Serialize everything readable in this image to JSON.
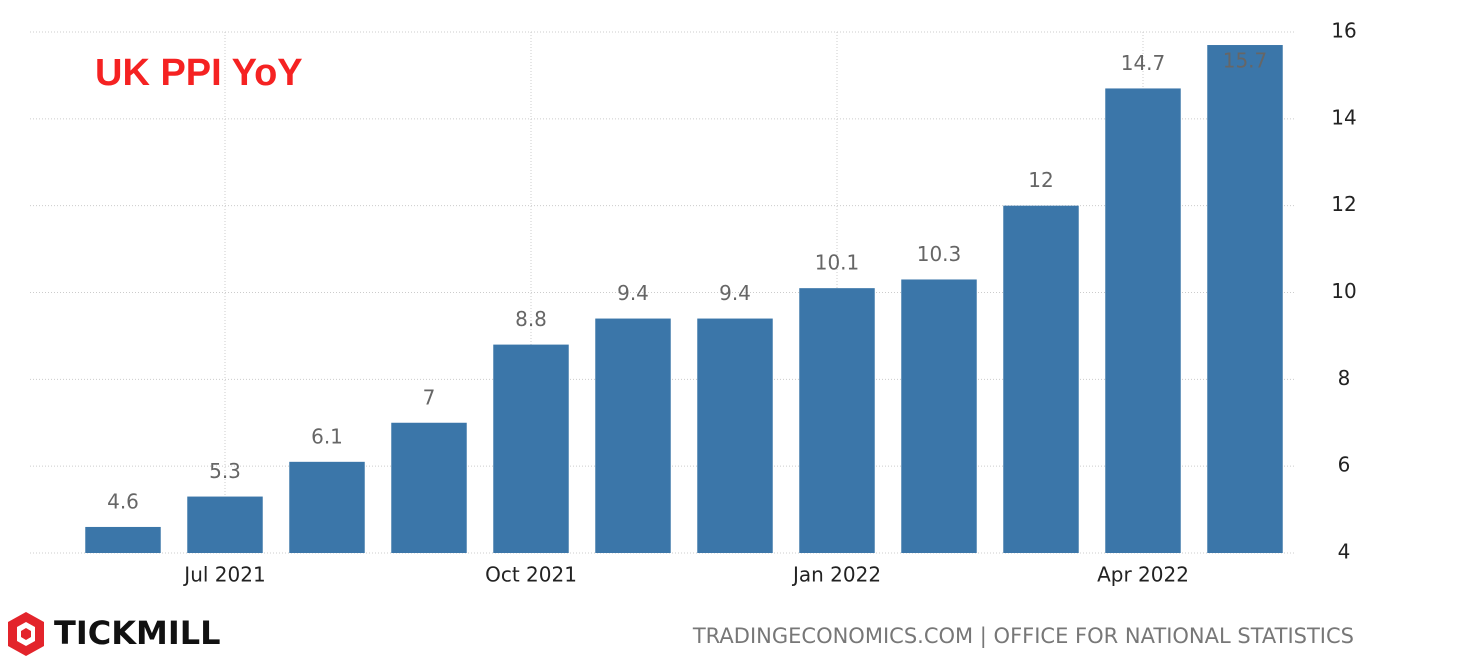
{
  "brand": "TICKMILL",
  "chart_data": {
    "type": "bar",
    "title": "UK PPI YoY",
    "categories": [
      null,
      "Jul 2021",
      null,
      null,
      "Oct 2021",
      null,
      null,
      "Jan 2022",
      null,
      null,
      "Apr 2022",
      null
    ],
    "values": [
      4.6,
      5.3,
      6.1,
      7,
      8.8,
      9.4,
      9.4,
      10.1,
      10.3,
      12,
      14.7,
      15.7
    ],
    "color": "#3b76a9",
    "ylim": [
      4,
      16
    ],
    "yticks": [
      4,
      6,
      8,
      10,
      12,
      14,
      16
    ],
    "grid": true,
    "source": "TRADINGECONOMICS.COM | OFFICE FOR NATIONAL STATISTICS"
  }
}
